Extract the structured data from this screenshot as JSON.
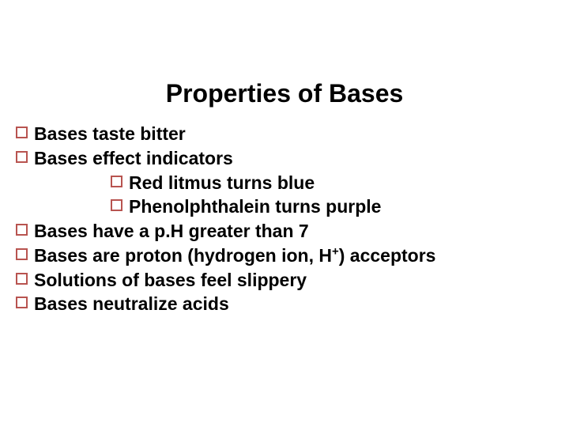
{
  "slide": {
    "title": "Properties of Bases",
    "title_fontsize": 32,
    "body_fontsize": 23,
    "bullet_border_color": "#b85450",
    "text_color": "#000000",
    "background_color": "#ffffff",
    "items": [
      {
        "text": "Bases taste bitter"
      },
      {
        "text": "Bases effect indicators",
        "sub": [
          {
            "text": "Red litmus turns blue"
          },
          {
            "text": "Phenolphthalein turns purple"
          }
        ]
      },
      {
        "text": "Bases have a p.H greater than 7"
      },
      {
        "text_html": "Bases are proton (hydrogen ion, H<sup>+</sup>) acceptors"
      },
      {
        "text": "Solutions of bases feel slippery"
      },
      {
        "text": "Bases neutralize acids"
      }
    ]
  }
}
